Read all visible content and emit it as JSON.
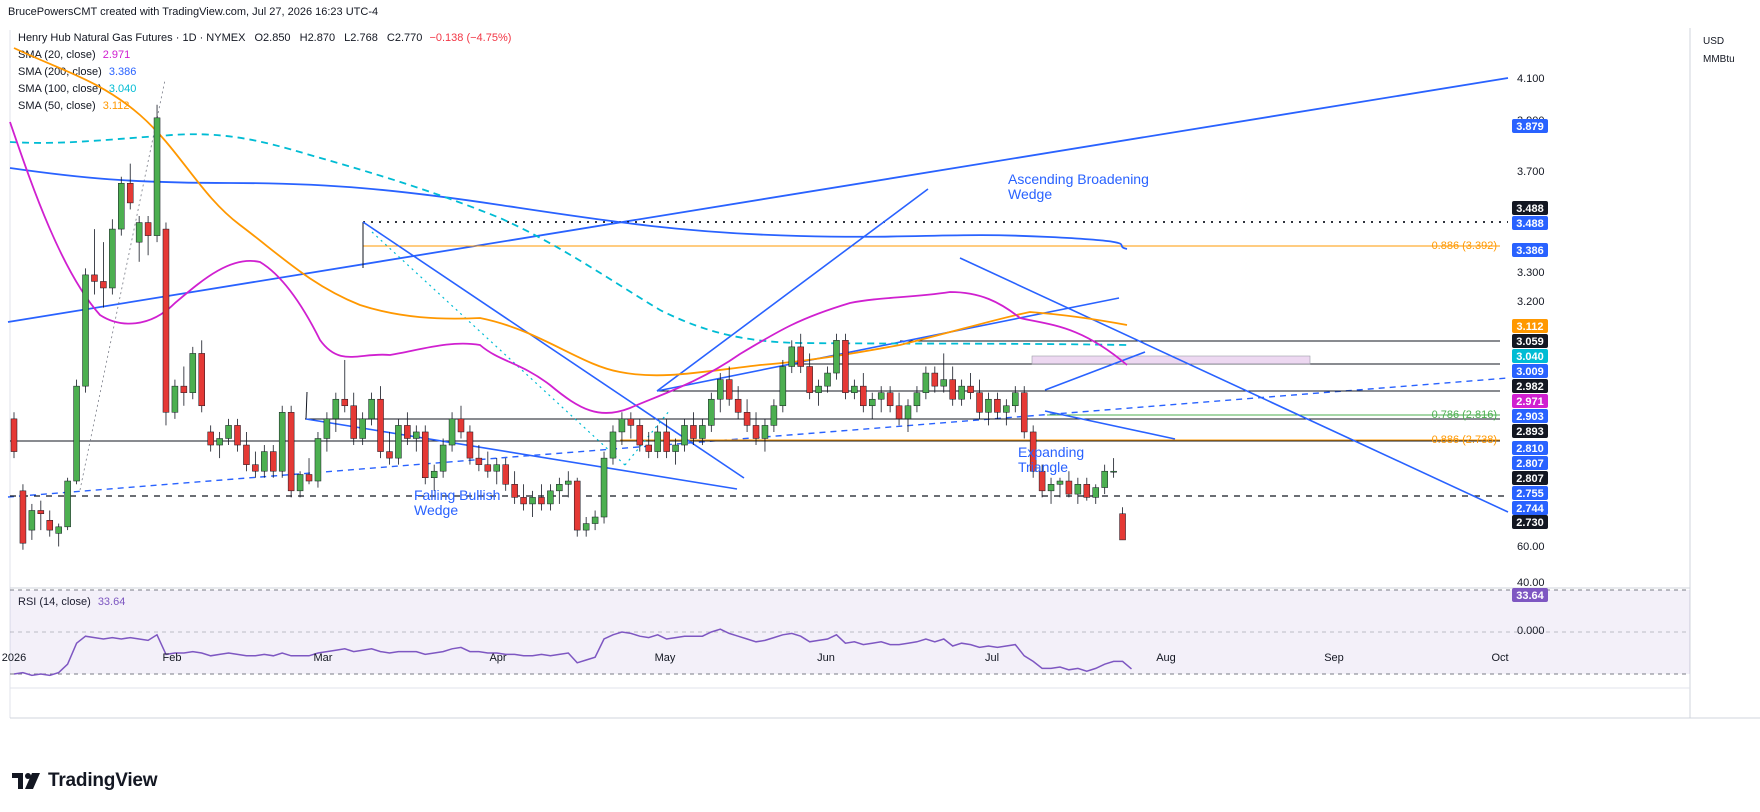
{
  "credit": "BrucePowersCMT created with TradingView.com, Jul 27, 2026 16:23 UTC-4",
  "symbol": {
    "name": "Henry Hub Natural Gas Futures · 1D · NYMEX",
    "open": "O2.850",
    "high": "H2.870",
    "low": "L2.768",
    "close": "C2.770",
    "change": "−0.138 (−4.75%)"
  },
  "indicators": [
    {
      "label": "SMA (20, close)",
      "value": "2.971",
      "color": "#d020d0"
    },
    {
      "label": "SMA (200, close)",
      "value": "3.386",
      "color": "#2962ff"
    },
    {
      "label": "SMA (100, close)",
      "value": "3.040",
      "color": "#00bcd4"
    },
    {
      "label": "SMA (50, close)",
      "value": "3.112",
      "color": "#ff9800"
    }
  ],
  "currency": "USD",
  "unit": "MMBtu",
  "rsi": {
    "label": "RSI (14, close)",
    "value": "33.64",
    "ticks": [
      "60.00",
      "40.00",
      "0.000"
    ]
  },
  "brand": "TradingView",
  "chart_data": {
    "type": "candlestick",
    "x_axis_labels": [
      "2026",
      "Feb",
      "Mar",
      "Apr",
      "May",
      "Jun",
      "Jul",
      "Aug",
      "Sep",
      "Oct"
    ],
    "y_axis_ticks": [
      "4.100",
      "3.900",
      "3.700",
      "3.500",
      "3.386",
      "3.300",
      "3.200",
      "3.100",
      "3.059",
      "3.009",
      "2.982",
      "2.903",
      "2.893",
      "2.810",
      "2.807",
      "2.755",
      "2.744",
      "2.730"
    ],
    "price_labels": [
      {
        "value": "3.879",
        "color": "#2962ff"
      },
      {
        "value": "3.488",
        "color": "#131722"
      },
      {
        "value": "3.488",
        "color": "#2962ff"
      },
      {
        "value": "3.386",
        "color": "#2962ff"
      },
      {
        "value": "3.112",
        "color": "#ff9800"
      },
      {
        "value": "3.059",
        "color": "#131722"
      },
      {
        "value": "3.040",
        "color": "#00bcd4"
      },
      {
        "value": "3.009",
        "color": "#2962ff"
      },
      {
        "value": "2.982",
        "color": "#131722"
      },
      {
        "value": "2.971",
        "color": "#d020d0"
      },
      {
        "value": "2.903",
        "color": "#2962ff"
      },
      {
        "value": "2.893",
        "color": "#131722"
      },
      {
        "value": "2.810",
        "color": "#2962ff"
      },
      {
        "value": "2.807",
        "color": "#2962ff"
      },
      {
        "value": "2.807",
        "color": "#131722"
      },
      {
        "value": "2.755",
        "color": "#2962ff"
      },
      {
        "value": "2.744",
        "color": "#2962ff"
      },
      {
        "value": "2.730",
        "color": "#131722"
      }
    ],
    "fib_levels": [
      {
        "label": "0.886 (3.392)",
        "value": 3.392,
        "color": "#ff9800"
      },
      {
        "label": "0.786 (2.816)",
        "value": 2.816,
        "color": "#4caf50"
      },
      {
        "label": "0.886 (2.738)",
        "value": 2.738,
        "color": "#ff9800"
      }
    ],
    "annotations": [
      {
        "text": "Ascending Broadening Wedge"
      },
      {
        "text": "Expanding Triangle"
      },
      {
        "text": "Falling Bullish Wedge"
      }
    ],
    "candles": [
      [
        3.14,
        3.16,
        3.02,
        3.04
      ],
      [
        2.92,
        2.94,
        2.74,
        2.76
      ],
      [
        2.8,
        2.88,
        2.77,
        2.86
      ],
      [
        2.86,
        2.89,
        2.8,
        2.85
      ],
      [
        2.83,
        2.86,
        2.78,
        2.8
      ],
      [
        2.79,
        2.82,
        2.75,
        2.81
      ],
      [
        2.81,
        2.96,
        2.8,
        2.95
      ],
      [
        2.95,
        3.26,
        2.94,
        3.24
      ],
      [
        3.24,
        3.6,
        3.22,
        3.58
      ],
      [
        3.58,
        3.72,
        3.52,
        3.56
      ],
      [
        3.56,
        3.68,
        3.48,
        3.54
      ],
      [
        3.54,
        3.75,
        3.52,
        3.72
      ],
      [
        3.72,
        3.88,
        3.7,
        3.86
      ],
      [
        3.86,
        3.92,
        3.78,
        3.8
      ],
      [
        3.68,
        3.76,
        3.62,
        3.74
      ],
      [
        3.74,
        3.76,
        3.64,
        3.7
      ],
      [
        3.7,
        4.1,
        3.68,
        4.06
      ],
      [
        3.72,
        3.74,
        3.12,
        3.16
      ],
      [
        3.16,
        3.26,
        3.14,
        3.24
      ],
      [
        3.24,
        3.3,
        3.18,
        3.22
      ],
      [
        3.22,
        3.36,
        3.2,
        3.34
      ],
      [
        3.34,
        3.38,
        3.16,
        3.18
      ],
      [
        3.1,
        3.12,
        3.04,
        3.06
      ],
      [
        3.06,
        3.1,
        3.02,
        3.08
      ],
      [
        3.08,
        3.14,
        3.06,
        3.12
      ],
      [
        3.12,
        3.14,
        3.04,
        3.06
      ],
      [
        3.06,
        3.1,
        2.98,
        3.0
      ],
      [
        3.0,
        3.04,
        2.96,
        2.98
      ],
      [
        2.98,
        3.06,
        2.96,
        3.04
      ],
      [
        3.04,
        3.06,
        2.96,
        2.98
      ],
      [
        2.98,
        3.18,
        2.96,
        3.16
      ],
      [
        3.16,
        3.18,
        2.9,
        2.92
      ],
      [
        2.92,
        2.98,
        2.9,
        2.97
      ],
      [
        2.97,
        3.02,
        2.94,
        2.95
      ],
      [
        2.95,
        3.1,
        2.93,
        3.08
      ],
      [
        3.08,
        3.16,
        3.04,
        3.14
      ],
      [
        3.14,
        3.22,
        3.1,
        3.2
      ],
      [
        3.2,
        3.32,
        3.16,
        3.18
      ],
      [
        3.18,
        3.22,
        3.06,
        3.08
      ],
      [
        3.08,
        3.16,
        3.06,
        3.14
      ],
      [
        3.14,
        3.22,
        3.12,
        3.2
      ],
      [
        3.2,
        3.24,
        3.02,
        3.04
      ],
      [
        3.04,
        3.1,
        3.0,
        3.02
      ],
      [
        3.02,
        3.14,
        3.0,
        3.12
      ],
      [
        3.12,
        3.16,
        3.06,
        3.08
      ],
      [
        3.08,
        3.12,
        3.04,
        3.1
      ],
      [
        3.1,
        3.12,
        2.94,
        2.96
      ],
      [
        2.96,
        3.0,
        2.92,
        2.98
      ],
      [
        2.98,
        3.08,
        2.96,
        3.06
      ],
      [
        3.06,
        3.16,
        3.04,
        3.14
      ],
      [
        3.14,
        3.18,
        3.08,
        3.1
      ],
      [
        3.1,
        3.12,
        3.0,
        3.02
      ],
      [
        3.02,
        3.06,
        2.98,
        3.0
      ],
      [
        3.0,
        3.04,
        2.96,
        2.98
      ],
      [
        2.98,
        3.02,
        2.94,
        3.0
      ],
      [
        3.0,
        3.02,
        2.92,
        2.94
      ],
      [
        2.94,
        2.98,
        2.88,
        2.9
      ],
      [
        2.9,
        2.94,
        2.86,
        2.88
      ],
      [
        2.88,
        2.92,
        2.84,
        2.9
      ],
      [
        2.9,
        2.94,
        2.86,
        2.88
      ],
      [
        2.88,
        2.94,
        2.86,
        2.92
      ],
      [
        2.92,
        2.96,
        2.88,
        2.94
      ],
      [
        2.94,
        2.98,
        2.9,
        2.95
      ],
      [
        2.95,
        2.96,
        2.78,
        2.8
      ],
      [
        2.8,
        2.84,
        2.78,
        2.82
      ],
      [
        2.82,
        2.86,
        2.8,
        2.84
      ],
      [
        2.84,
        3.04,
        2.82,
        3.02
      ],
      [
        3.02,
        3.12,
        3.0,
        3.1
      ],
      [
        3.1,
        3.16,
        3.06,
        3.14
      ],
      [
        3.14,
        3.16,
        3.08,
        3.12
      ],
      [
        3.12,
        3.14,
        3.04,
        3.06
      ],
      [
        3.06,
        3.1,
        3.02,
        3.04
      ],
      [
        3.04,
        3.12,
        3.02,
        3.1
      ],
      [
        3.1,
        3.14,
        3.02,
        3.04
      ],
      [
        3.04,
        3.08,
        3.0,
        3.06
      ],
      [
        3.06,
        3.14,
        3.04,
        3.12
      ],
      [
        3.12,
        3.16,
        3.06,
        3.08
      ],
      [
        3.08,
        3.14,
        3.06,
        3.12
      ],
      [
        3.12,
        3.22,
        3.1,
        3.2
      ],
      [
        3.2,
        3.28,
        3.16,
        3.26
      ],
      [
        3.26,
        3.3,
        3.18,
        3.2
      ],
      [
        3.2,
        3.24,
        3.14,
        3.16
      ],
      [
        3.16,
        3.2,
        3.1,
        3.12
      ],
      [
        3.12,
        3.16,
        3.06,
        3.08
      ],
      [
        3.08,
        3.14,
        3.04,
        3.12
      ],
      [
        3.12,
        3.2,
        3.1,
        3.18
      ],
      [
        3.18,
        3.32,
        3.16,
        3.3
      ],
      [
        3.3,
        3.38,
        3.28,
        3.36
      ],
      [
        3.36,
        3.4,
        3.28,
        3.3
      ],
      [
        3.3,
        3.34,
        3.2,
        3.22
      ],
      [
        3.22,
        3.26,
        3.18,
        3.24
      ],
      [
        3.24,
        3.3,
        3.22,
        3.28
      ],
      [
        3.28,
        3.4,
        3.26,
        3.38
      ],
      [
        3.38,
        3.4,
        3.2,
        3.22
      ],
      [
        3.22,
        3.26,
        3.2,
        3.24
      ],
      [
        3.24,
        3.28,
        3.16,
        3.18
      ],
      [
        3.18,
        3.22,
        3.14,
        3.2
      ],
      [
        3.2,
        3.24,
        3.16,
        3.22
      ],
      [
        3.22,
        3.24,
        3.16,
        3.18
      ],
      [
        3.18,
        3.22,
        3.12,
        3.14
      ],
      [
        3.14,
        3.2,
        3.1,
        3.18
      ],
      [
        3.18,
        3.24,
        3.16,
        3.22
      ],
      [
        3.22,
        3.3,
        3.2,
        3.28
      ],
      [
        3.28,
        3.3,
        3.22,
        3.24
      ],
      [
        3.24,
        3.34,
        3.22,
        3.26
      ],
      [
        3.26,
        3.3,
        3.18,
        3.2
      ],
      [
        3.2,
        3.26,
        3.18,
        3.24
      ],
      [
        3.24,
        3.28,
        3.2,
        3.22
      ],
      [
        3.22,
        3.26,
        3.14,
        3.16
      ],
      [
        3.16,
        3.22,
        3.12,
        3.2
      ],
      [
        3.2,
        3.22,
        3.14,
        3.16
      ],
      [
        3.16,
        3.2,
        3.12,
        3.18
      ],
      [
        3.18,
        3.24,
        3.16,
        3.22
      ],
      [
        3.22,
        3.24,
        3.08,
        3.1
      ],
      [
        3.1,
        3.12,
        2.96,
        2.98
      ],
      [
        2.98,
        3.0,
        2.9,
        2.92
      ],
      [
        2.92,
        2.96,
        2.88,
        2.94
      ],
      [
        2.94,
        2.96,
        2.9,
        2.95
      ],
      [
        2.95,
        2.98,
        2.9,
        2.91
      ],
      [
        2.91,
        2.96,
        2.88,
        2.94
      ],
      [
        2.94,
        2.96,
        2.89,
        2.9
      ],
      [
        2.9,
        2.94,
        2.88,
        2.93
      ],
      [
        2.93,
        3.0,
        2.91,
        2.98
      ],
      [
        2.98,
        3.02,
        2.96,
        2.98
      ],
      [
        2.85,
        2.87,
        2.77,
        2.77
      ]
    ],
    "rsi_values": [
      30,
      31,
      29,
      30,
      29,
      31,
      37,
      52,
      57,
      56,
      55,
      56,
      55,
      56,
      55,
      54,
      58,
      44,
      45,
      45,
      46,
      45,
      43,
      44,
      45,
      44,
      43,
      43,
      44,
      43,
      45,
      43,
      43,
      43,
      45,
      46,
      47,
      48,
      46,
      47,
      48,
      46,
      45,
      46,
      46,
      46,
      44,
      45,
      46,
      48,
      49,
      46,
      46,
      45,
      45,
      44,
      44,
      43,
      43,
      44,
      43,
      44,
      45,
      38,
      40,
      42,
      55,
      58,
      60,
      59,
      57,
      56,
      58,
      55,
      56,
      57,
      57,
      57,
      60,
      62,
      59,
      57,
      55,
      53,
      54,
      56,
      58,
      59,
      57,
      53,
      54,
      55,
      58,
      52,
      53,
      51,
      52,
      53,
      51,
      51,
      52,
      53,
      55,
      53,
      55,
      50,
      52,
      51,
      49,
      50,
      49,
      50,
      51,
      43,
      39,
      34,
      34,
      35,
      33,
      34,
      32,
      34,
      37,
      39,
      39,
      33.64
    ]
  }
}
